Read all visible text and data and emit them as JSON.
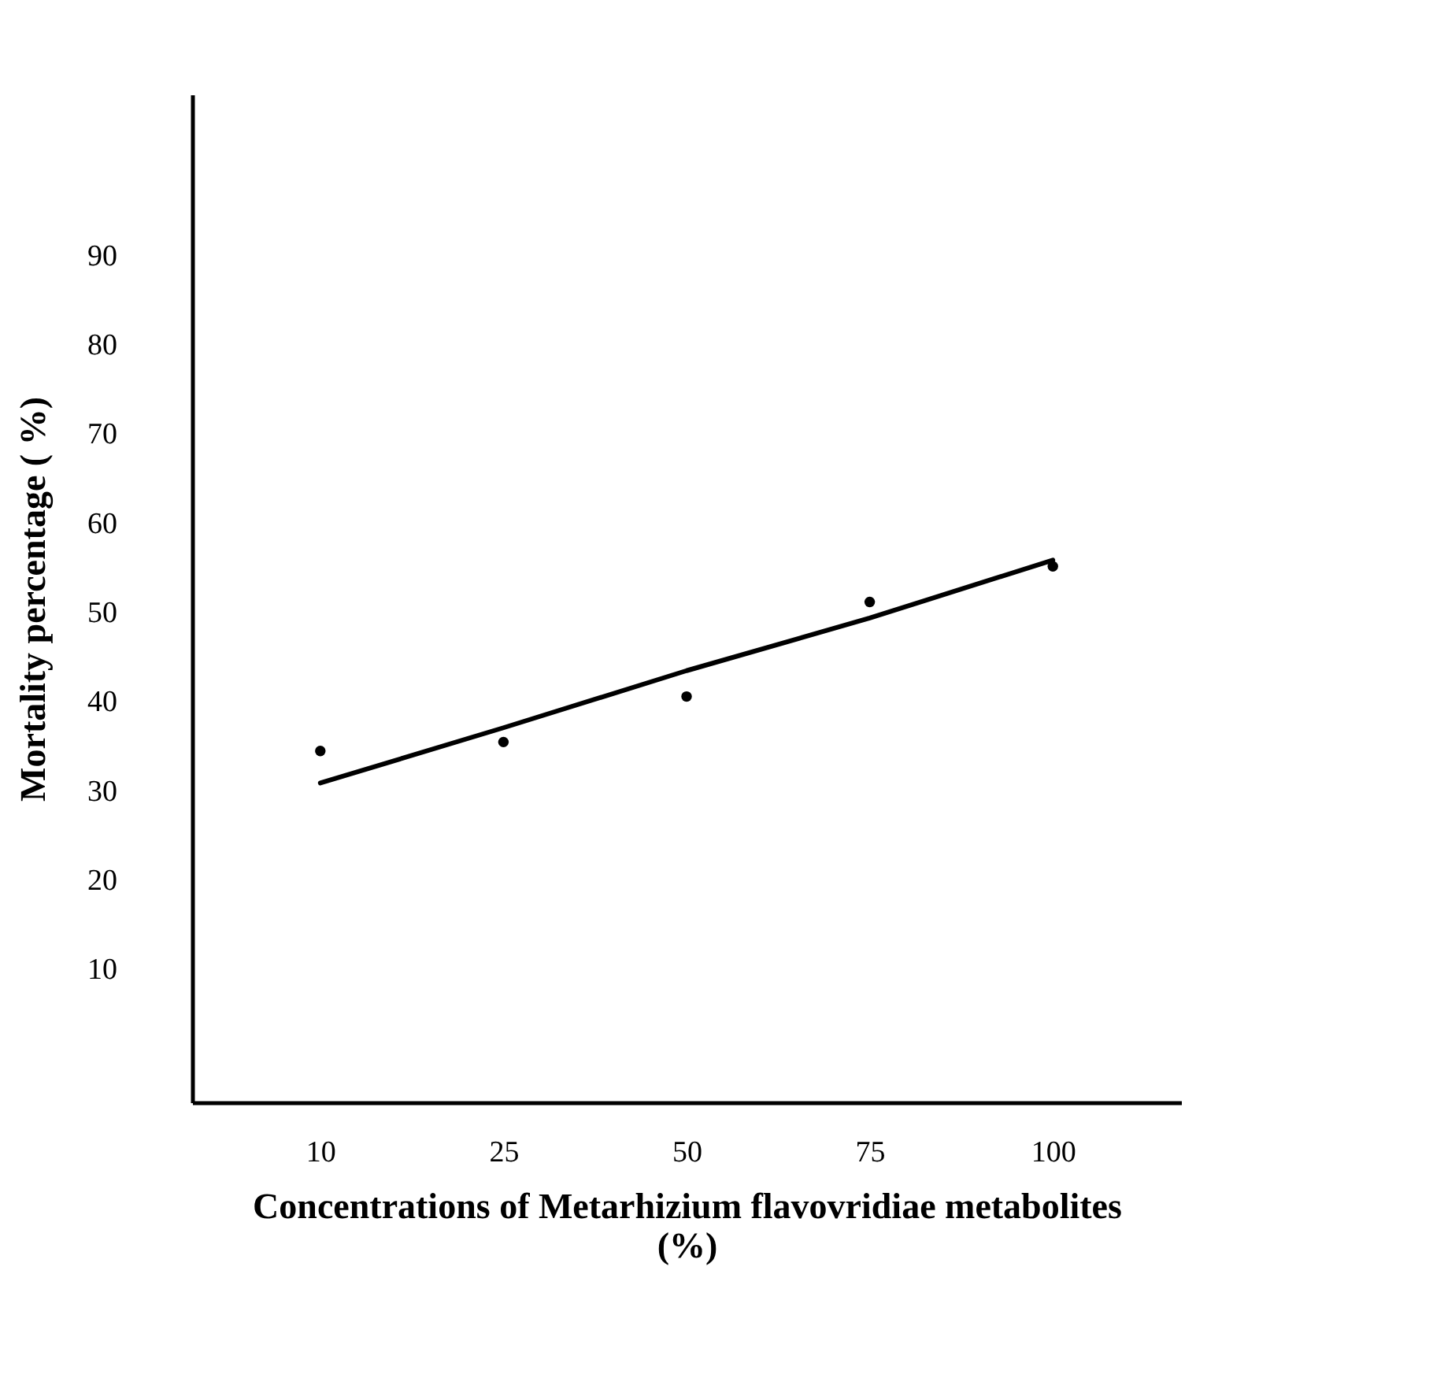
{
  "chart_data": {
    "type": "scatter",
    "xlabel": "Concentrations of Metarhizium flavovridiae metabolites (%)",
    "ylabel": "Mortality percentage ( %)",
    "categories": [
      "10",
      "25",
      "50",
      "75",
      "100"
    ],
    "ylim": [
      -5,
      108
    ],
    "yticks": [
      10,
      20,
      30,
      40,
      50,
      60,
      70,
      80,
      90
    ],
    "grid": false,
    "series": [
      {
        "color": "#000000",
        "marker": "circle",
        "values": [
          34.4,
          35.4,
          40.5,
          51.1,
          55.1
        ]
      },
      {
        "type": "line",
        "color": "#000000",
        "line_style": "solid",
        "values": [
          30.8,
          37.0,
          43.4,
          49.3,
          55.8
        ]
      }
    ]
  }
}
